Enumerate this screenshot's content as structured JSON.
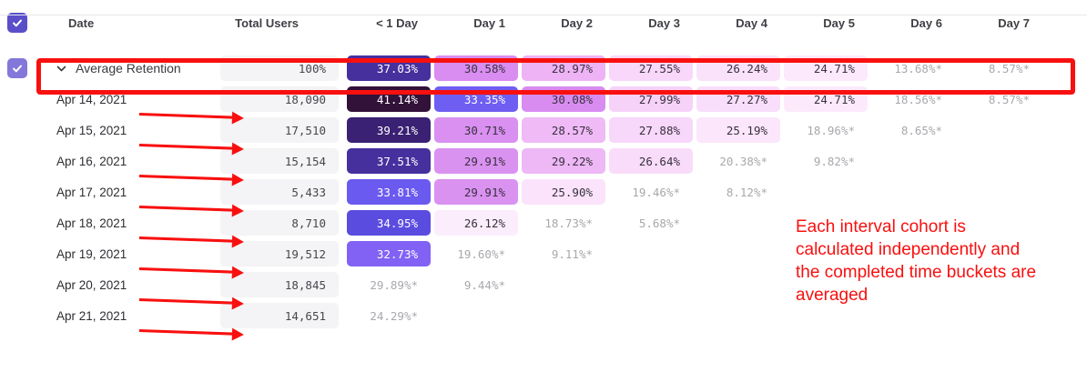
{
  "table": {
    "headers": [
      "Date",
      "Total Users",
      "< 1 Day",
      "Day 1",
      "Day 2",
      "Day 3",
      "Day 4",
      "Day 5",
      "Day 6",
      "Day 7"
    ],
    "rows": [
      {
        "label": "Average Retention",
        "type": "average",
        "total": "100%",
        "cells": [
          {
            "v": "37.03%",
            "bg": "#46309e",
            "fg": "light"
          },
          {
            "v": "30.58%",
            "bg": "#d98df0",
            "fg": "dark"
          },
          {
            "v": "28.97%",
            "bg": "#eeb3f5",
            "fg": "dark"
          },
          {
            "v": "27.55%",
            "bg": "#f9d7fa",
            "fg": "dark"
          },
          {
            "v": "26.24%",
            "bg": "#fbe2fb",
            "fg": "dark"
          },
          {
            "v": "24.71%",
            "bg": "#fce9fc",
            "fg": "dark"
          },
          {
            "v": "13.68%*",
            "bg": null,
            "fg": "gray"
          },
          {
            "v": "8.57%*",
            "bg": null,
            "fg": "gray"
          }
        ]
      },
      {
        "label": "Apr 14, 2021",
        "type": "date",
        "total": "18,090",
        "cells": [
          {
            "v": "41.14%",
            "bg": "#321239",
            "fg": "light"
          },
          {
            "v": "33.35%",
            "bg": "#6f5ef2",
            "fg": "light"
          },
          {
            "v": "30.08%",
            "bg": "#d88cf0",
            "fg": "dark"
          },
          {
            "v": "27.99%",
            "bg": "#f6d2f9",
            "fg": "dark"
          },
          {
            "v": "27.27%",
            "bg": "#f9defb",
            "fg": "dark"
          },
          {
            "v": "24.71%",
            "bg": "#fceafc",
            "fg": "dark"
          },
          {
            "v": "18.56%*",
            "bg": null,
            "fg": "gray"
          },
          {
            "v": "8.57%*",
            "bg": null,
            "fg": "gray"
          }
        ]
      },
      {
        "label": "Apr 15, 2021",
        "type": "date",
        "total": "17,510",
        "cells": [
          {
            "v": "39.21%",
            "bg": "#3a2173",
            "fg": "light"
          },
          {
            "v": "30.71%",
            "bg": "#d990f1",
            "fg": "dark"
          },
          {
            "v": "28.57%",
            "bg": "#efbaf6",
            "fg": "dark"
          },
          {
            "v": "27.88%",
            "bg": "#f7d7fa",
            "fg": "dark"
          },
          {
            "v": "25.19%",
            "bg": "#fbe6fb",
            "fg": "dark"
          },
          {
            "v": "18.96%*",
            "bg": null,
            "fg": "gray"
          },
          {
            "v": "8.65%*",
            "bg": null,
            "fg": "gray"
          },
          null
        ]
      },
      {
        "label": "Apr 16, 2021",
        "type": "date",
        "total": "15,154",
        "cells": [
          {
            "v": "37.51%",
            "bg": "#46309e",
            "fg": "light"
          },
          {
            "v": "29.91%",
            "bg": "#da92f1",
            "fg": "dark"
          },
          {
            "v": "29.22%",
            "bg": "#eeb7f6",
            "fg": "dark"
          },
          {
            "v": "26.64%",
            "bg": "#f9dcfa",
            "fg": "dark"
          },
          {
            "v": "20.38%*",
            "bg": null,
            "fg": "gray"
          },
          {
            "v": "9.82%*",
            "bg": null,
            "fg": "gray"
          },
          null,
          null
        ]
      },
      {
        "label": "Apr 17, 2021",
        "type": "date",
        "total": "5,433",
        "cells": [
          {
            "v": "33.81%",
            "bg": "#6a5aef",
            "fg": "light"
          },
          {
            "v": "29.91%",
            "bg": "#da92f1",
            "fg": "dark"
          },
          {
            "v": "25.90%",
            "bg": "#fae3fb",
            "fg": "dark"
          },
          {
            "v": "19.46%*",
            "bg": null,
            "fg": "gray"
          },
          {
            "v": "8.12%*",
            "bg": null,
            "fg": "gray"
          },
          null,
          null,
          null
        ]
      },
      {
        "label": "Apr 18, 2021",
        "type": "date",
        "total": "8,710",
        "cells": [
          {
            "v": "34.95%",
            "bg": "#5b4ce0",
            "fg": "light"
          },
          {
            "v": "26.12%",
            "bg": "#fcedfc",
            "fg": "dark"
          },
          {
            "v": "18.73%*",
            "bg": null,
            "fg": "gray"
          },
          {
            "v": "5.68%*",
            "bg": null,
            "fg": "gray"
          },
          null,
          null,
          null,
          null
        ]
      },
      {
        "label": "Apr 19, 2021",
        "type": "date",
        "total": "19,512",
        "cells": [
          {
            "v": "32.73%",
            "bg": "#8162f4",
            "fg": "light"
          },
          {
            "v": "19.60%*",
            "bg": null,
            "fg": "gray"
          },
          {
            "v": "9.11%*",
            "bg": null,
            "fg": "gray"
          },
          null,
          null,
          null,
          null,
          null
        ]
      },
      {
        "label": "Apr 20, 2021",
        "type": "date",
        "total": "18,845",
        "cells": [
          {
            "v": "29.89%*",
            "bg": null,
            "fg": "gray"
          },
          {
            "v": "9.44%*",
            "bg": null,
            "fg": "gray"
          },
          null,
          null,
          null,
          null,
          null,
          null
        ]
      },
      {
        "label": "Apr 21, 2021",
        "type": "date",
        "total": "14,651",
        "cells": [
          {
            "v": "24.29%*",
            "bg": null,
            "fg": "gray"
          },
          null,
          null,
          null,
          null,
          null,
          null,
          null
        ]
      }
    ]
  },
  "annotations": {
    "note_lines": [
      "Each interval cohort is",
      "calculated independently and",
      "the completed time buckets are",
      "averaged"
    ],
    "red_color": "#f8100f"
  },
  "colors": {
    "header_checkbox": "#5a4fc9",
    "row_checkbox": "#8477da",
    "total_cell_bg": "#f4f3f5",
    "muted_value_text": "#a9a7ac"
  }
}
